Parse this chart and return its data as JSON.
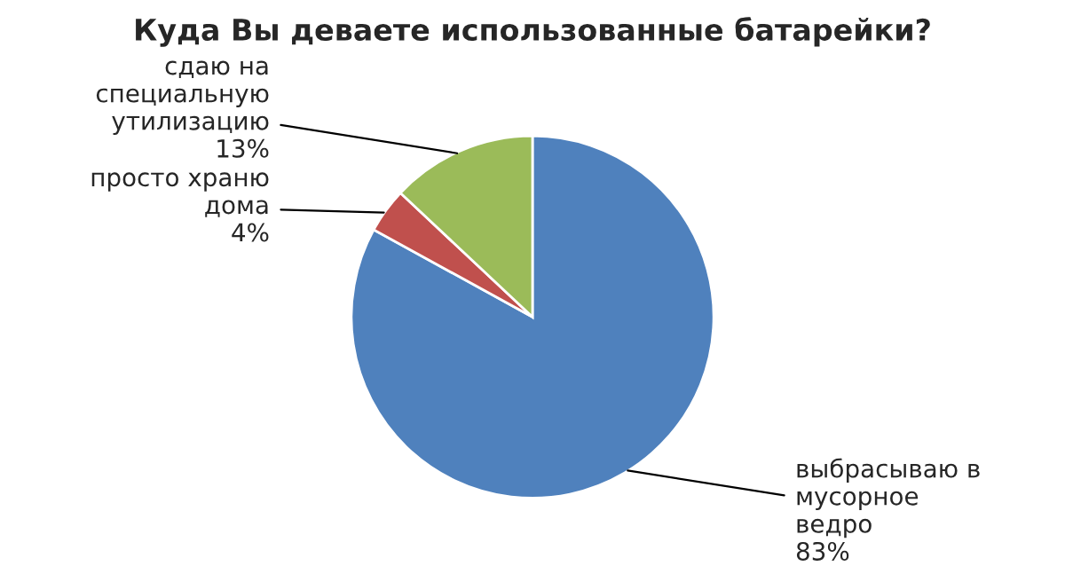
{
  "chart_data": {
    "type": "pie",
    "title": "Куда Вы деваете использованные батарейки?",
    "categories": [
      "выбрасываю в мусорное ведро",
      "просто храню дома",
      "сдаю на специальную утилизацию"
    ],
    "values": [
      83,
      4,
      13
    ],
    "value_labels": [
      "83%",
      "4%",
      "13%"
    ],
    "colors": [
      "#4f81bd",
      "#c0504d",
      "#9bbb59"
    ],
    "legend": false
  }
}
